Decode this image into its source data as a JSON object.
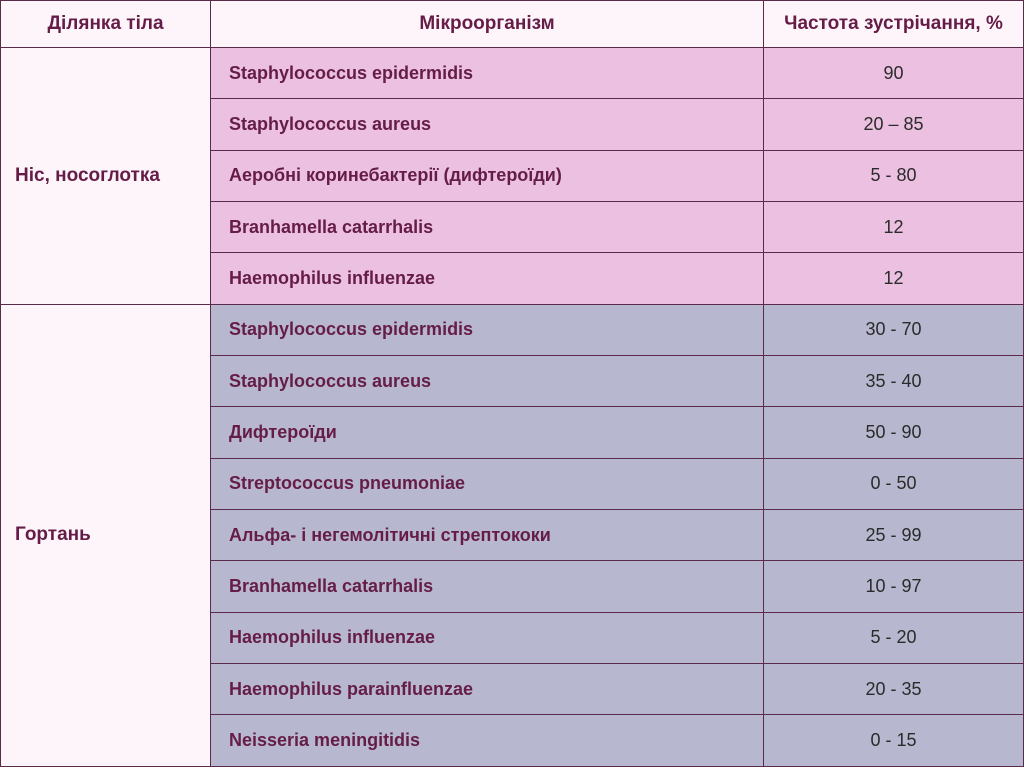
{
  "table": {
    "headers": {
      "region": "Ділянка тіла",
      "organism": "Мікроорганізм",
      "freq": "Частота зустрічання, %"
    },
    "sections": [
      {
        "region": "Ніс, носоглотка",
        "rowColor": "pink",
        "rows": [
          {
            "organism": "Staphylococcus epidermidis",
            "freq": "90"
          },
          {
            "organism": "Staphylococcus aureus",
            "freq": "20 – 85"
          },
          {
            "organism": "Аеробні коринебактерії (дифтероїди)",
            "freq": "5 - 80"
          },
          {
            "organism": "Branhamella catarrhalis",
            "freq": "12"
          },
          {
            "organism": "Haemophilus influenzae",
            "freq": "12"
          }
        ]
      },
      {
        "region": "Гортань",
        "rowColor": "blue",
        "rows": [
          {
            "organism": "Staphylococcus epidermidis",
            "freq": "30 - 70"
          },
          {
            "organism": "Staphylococcus aureus",
            "freq": "35 - 40"
          },
          {
            "organism": "Дифтероїди",
            "freq": "50 - 90"
          },
          {
            "organism": "Streptococcus pneumoniae",
            "freq": "0 - 50"
          },
          {
            "organism": "Альфа- і негемолітичні стрептококи",
            "freq": "25 - 99"
          },
          {
            "organism": "Branhamella catarrhalis",
            "freq": "10 - 97"
          },
          {
            "organism": "Haemophilus influenzae",
            "freq": "5 - 20"
          },
          {
            "organism": "Haemophilus parainfluenzae",
            "freq": "20 - 35"
          },
          {
            "organism": "Neisseria meningitidis",
            "freq": "0 - 15"
          }
        ]
      }
    ],
    "colors": {
      "pink": "#ebc0e0",
      "blue": "#b7b8cf",
      "background": "#fdf5f9",
      "textPrimary": "#651d47",
      "textData": "#2b2b2b",
      "border": "#5a2a4a"
    }
  }
}
